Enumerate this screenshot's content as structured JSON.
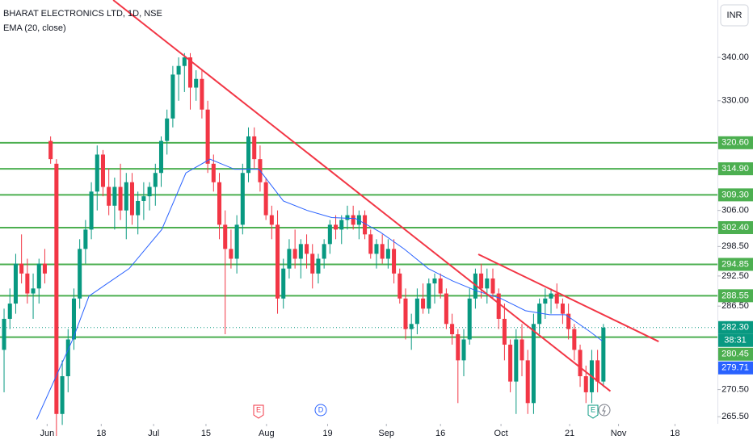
{
  "chart_data": {
    "type": "candlestick",
    "title": "BHARAT ELECTRONICS LTD, 1D, NSE",
    "indicator": "EMA (20, close)",
    "currency": "INR",
    "log_scale": true,
    "ylim": [
      264.2,
      353.7
    ],
    "xlim": [
      -0.7,
      122.6
    ],
    "yticks": [
      {
        "value": 340,
        "label": "340.00"
      },
      {
        "value": 330,
        "label": "330.00"
      },
      {
        "value": 306,
        "label": "306.00"
      },
      {
        "value": 298.5,
        "label": "298.50"
      },
      {
        "value": 292.5,
        "label": "292.50"
      },
      {
        "value": 286.5,
        "label": "286.50"
      },
      {
        "value": 270.5,
        "label": "270.50"
      },
      {
        "value": 265.5,
        "label": "265.50"
      }
    ],
    "xticks": [
      {
        "value": 7.4,
        "label": "Jun"
      },
      {
        "value": 16.7,
        "label": "18"
      },
      {
        "value": 25.7,
        "label": "Jul"
      },
      {
        "value": 34.7,
        "label": "15"
      },
      {
        "value": 45.1,
        "label": "Aug"
      },
      {
        "value": 55.6,
        "label": "19"
      },
      {
        "value": 65.7,
        "label": "Sep"
      },
      {
        "value": 75,
        "label": "16"
      },
      {
        "value": 85.4,
        "label": "Oct"
      },
      {
        "value": 97.2,
        "label": "21"
      },
      {
        "value": 105.6,
        "label": "Nov"
      },
      {
        "value": 115.3,
        "label": "18"
      }
    ],
    "up_color": "#089981",
    "down_color": "#f23645",
    "candles": [
      [
        278,
        286,
        270,
        284
      ],
      [
        284,
        290,
        282,
        287
      ],
      [
        287,
        297,
        285,
        295
      ],
      [
        295,
        301,
        291,
        293
      ],
      [
        293,
        296,
        287,
        289
      ],
      [
        289,
        293,
        284,
        290
      ],
      [
        290,
        296,
        287,
        295
      ],
      [
        295,
        298,
        291,
        293
      ],
      [
        321,
        322,
        316,
        317
      ],
      [
        316,
        317,
        262,
        266
      ],
      [
        266,
        276,
        264,
        273
      ],
      [
        273,
        282,
        270,
        280
      ],
      [
        280,
        290,
        278,
        288
      ],
      [
        288,
        300,
        286,
        298
      ],
      [
        298,
        304,
        295,
        302
      ],
      [
        302,
        312,
        300,
        310
      ],
      [
        310,
        320,
        306,
        318
      ],
      [
        318,
        319,
        309,
        311
      ],
      [
        311,
        315,
        305,
        307
      ],
      [
        307,
        313,
        302,
        311
      ],
      [
        311,
        316,
        304,
        306
      ],
      [
        306,
        314,
        300,
        312
      ],
      [
        312,
        314,
        303,
        305
      ],
      [
        305,
        310,
        301,
        308
      ],
      [
        308,
        312,
        304,
        309
      ],
      [
        309,
        312,
        306,
        311
      ],
      [
        311,
        316,
        307,
        314
      ],
      [
        314,
        322,
        311,
        321
      ],
      [
        321,
        328,
        318,
        326
      ],
      [
        326,
        338,
        324,
        336
      ],
      [
        336,
        340,
        330,
        338
      ],
      [
        338,
        341,
        332,
        340
      ],
      [
        340,
        341,
        328,
        333
      ],
      [
        333,
        337,
        330,
        335
      ],
      [
        335,
        337,
        326,
        328
      ],
      [
        328,
        330,
        314,
        316
      ],
      [
        316,
        318,
        310,
        312
      ],
      [
        312,
        314,
        300,
        303
      ],
      [
        303,
        306,
        281,
        298
      ],
      [
        298,
        302,
        294,
        296
      ],
      [
        296,
        305,
        293,
        303
      ],
      [
        303,
        316,
        301,
        314
      ],
      [
        314,
        324,
        312,
        322
      ],
      [
        322,
        324,
        315,
        317
      ],
      [
        317,
        320,
        310,
        312
      ],
      [
        312,
        313,
        304,
        305
      ],
      [
        305,
        307,
        300,
        303
      ],
      [
        303,
        306,
        285,
        288
      ],
      [
        288,
        296,
        286,
        294
      ],
      [
        294,
        300,
        292,
        298
      ],
      [
        298,
        302,
        294,
        296
      ],
      [
        296,
        300,
        292,
        299
      ],
      [
        299,
        301,
        294,
        297
      ],
      [
        297,
        299,
        290,
        293
      ],
      [
        293,
        297,
        291,
        296
      ],
      [
        296,
        300,
        294,
        299
      ],
      [
        299,
        304,
        297,
        303
      ],
      [
        303,
        305,
        300,
        302
      ],
      [
        302,
        305,
        299,
        304
      ],
      [
        304,
        307,
        302,
        305
      ],
      [
        305,
        307,
        302,
        303
      ],
      [
        303,
        306,
        300,
        305
      ],
      [
        305,
        306,
        300,
        301
      ],
      [
        301,
        302,
        296,
        297
      ],
      [
        297,
        300,
        294,
        299
      ],
      [
        299,
        301,
        295,
        296
      ],
      [
        296,
        300,
        294,
        298
      ],
      [
        298,
        300,
        291,
        293
      ],
      [
        293,
        294,
        287,
        288
      ],
      [
        288,
        290,
        280,
        282
      ],
      [
        282,
        285,
        278,
        283
      ],
      [
        283,
        290,
        281,
        288
      ],
      [
        288,
        291,
        285,
        286
      ],
      [
        286,
        292,
        285,
        291
      ],
      [
        291,
        293,
        287,
        292
      ],
      [
        292,
        293,
        288,
        289
      ],
      [
        289,
        290,
        282,
        283
      ],
      [
        283,
        285,
        279,
        281
      ],
      [
        281,
        282,
        268,
        276
      ],
      [
        276,
        282,
        273,
        280
      ],
      [
        280,
        290,
        279,
        288
      ],
      [
        288,
        294,
        286,
        293
      ],
      [
        293,
        295,
        288,
        290
      ],
      [
        290,
        294,
        287,
        292
      ],
      [
        292,
        294,
        288,
        289
      ],
      [
        289,
        290,
        282,
        284
      ],
      [
        284,
        287,
        276,
        279
      ],
      [
        279,
        280,
        270,
        272
      ],
      [
        272,
        282,
        266,
        280
      ],
      [
        280,
        283,
        273,
        276
      ],
      [
        276,
        278,
        266,
        268
      ],
      [
        268,
        285,
        266,
        283
      ],
      [
        283,
        288,
        281,
        287
      ],
      [
        287,
        290,
        284,
        288
      ],
      [
        288,
        290,
        285,
        289
      ],
      [
        289,
        291,
        286,
        287
      ],
      [
        287,
        288,
        283,
        285
      ],
      [
        285,
        287,
        280,
        282
      ],
      [
        282,
        283,
        276,
        278
      ],
      [
        278,
        279,
        271,
        273
      ],
      [
        273,
        275,
        268,
        270
      ],
      [
        270,
        278,
        268,
        276
      ],
      [
        276,
        278,
        270,
        272
      ],
      [
        272,
        283,
        271,
        282.3
      ]
    ],
    "ema": {
      "color": "#2962ff",
      "x": [
        5.6,
        11.8,
        14.6,
        21.5,
        27.1,
        31.25,
        35.4,
        39.6,
        43.8,
        48,
        52.1,
        56.3,
        60.4,
        64.6,
        68.75,
        72.9,
        77.1,
        81.25,
        85.4,
        89.6,
        93.75,
        96.5,
        100.7,
        102.8
      ],
      "values": [
        265,
        280,
        288.5,
        294,
        302,
        314,
        317,
        314.8,
        314.8,
        308,
        306,
        304.5,
        304.3,
        301.5,
        298,
        294,
        291.5,
        289.5,
        288,
        285.6,
        284.8,
        284.8,
        281.5,
        279.71
      ]
    },
    "levels": {
      "color": "#4caf50",
      "values": [
        {
          "value": 320.6,
          "label": "320.60"
        },
        {
          "value": 314.9,
          "label": "314.90"
        },
        {
          "value": 309.3,
          "label": "309.30"
        },
        {
          "value": 302.4,
          "label": "302.40"
        },
        {
          "value": 294.85,
          "label": "294.85"
        },
        {
          "value": 288.55,
          "label": "288.55"
        },
        {
          "value": 280.45,
          "label": "280.45"
        }
      ]
    },
    "trendlines": {
      "color": "#f23645",
      "lines": [
        {
          "x": [
            18.75,
            104.2
          ],
          "values": [
            353.7,
            270.2
          ]
        },
        {
          "x": [
            81.5,
            112.5
          ],
          "values": [
            296.9,
            279.6
          ]
        }
      ]
    },
    "last_price": {
      "value": 282.3,
      "label": "282.30"
    },
    "countdown": "38:31",
    "ema_last": {
      "value": 279.71,
      "label": "279.71"
    },
    "events": [
      "E",
      "D",
      "E"
    ]
  }
}
